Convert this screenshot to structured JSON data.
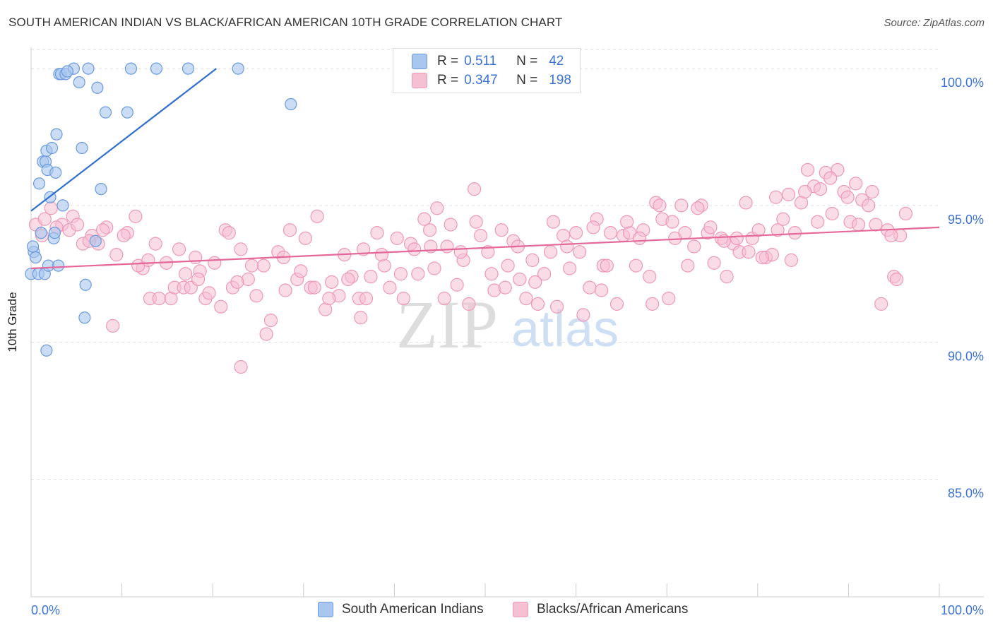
{
  "title": "SOUTH AMERICAN INDIAN VS BLACK/AFRICAN AMERICAN 10TH GRADE CORRELATION CHART",
  "source": "Source: ZipAtlas.com",
  "watermark": {
    "zip": "ZIP",
    "atlas": "atlas"
  },
  "legend": {
    "r_label": "R =",
    "n_label": "N =",
    "rows": [
      {
        "r": "0.511",
        "n": "42"
      },
      {
        "r": "0.347",
        "n": "198"
      }
    ]
  },
  "bottom_legend": [
    "South American Indians",
    "Blacks/African Americans"
  ],
  "colors": {
    "blue_fill": "#a9c6ef",
    "blue_stroke": "#6a9bde",
    "blue_line": "#2f6fd0",
    "pink_fill": "#f6c0d3",
    "pink_stroke": "#ee97b6",
    "pink_line": "#e5689a",
    "tick_label": "#3b72d6",
    "grid": "#dddddd"
  },
  "chart_data": {
    "type": "scatter",
    "title": "SOUTH AMERICAN INDIAN VS BLACK/AFRICAN AMERICAN 10TH GRADE CORRELATION CHART",
    "xlabel": "",
    "ylabel": "10th Grade",
    "xlim": [
      0,
      100
    ],
    "ylim": [
      80.7,
      100.7
    ],
    "x_tick_labels": [
      "0.0%",
      "100.0%"
    ],
    "y_ticks": [
      85.0,
      90.0,
      95.0,
      100.0
    ],
    "y_tick_labels": [
      "85.0%",
      "90.0%",
      "95.0%",
      "100.0%"
    ],
    "grid": true,
    "legend_position": "top-center",
    "series": [
      {
        "name": "South American Indians",
        "r": 0.511,
        "n": 42,
        "trend": {
          "x": [
            0,
            20.4
          ],
          "y": [
            94.8,
            100.0
          ]
        },
        "points": [
          [
            0.0,
            92.5
          ],
          [
            0.3,
            93.3
          ],
          [
            0.5,
            93.1
          ],
          [
            0.8,
            92.5
          ],
          [
            0.9,
            95.8
          ],
          [
            1.1,
            94.0
          ],
          [
            1.3,
            96.6
          ],
          [
            1.5,
            92.5
          ],
          [
            1.6,
            96.6
          ],
          [
            1.7,
            97.0
          ],
          [
            1.8,
            96.3
          ],
          [
            1.9,
            92.8
          ],
          [
            2.1,
            95.3
          ],
          [
            2.3,
            97.1
          ],
          [
            2.5,
            93.8
          ],
          [
            2.6,
            94.0
          ],
          [
            2.7,
            96.2
          ],
          [
            2.8,
            97.6
          ],
          [
            3.0,
            92.8
          ],
          [
            3.1,
            99.8
          ],
          [
            3.3,
            99.8
          ],
          [
            3.5,
            95.0
          ],
          [
            3.8,
            99.8
          ],
          [
            4.7,
            100.0
          ],
          [
            5.3,
            99.5
          ],
          [
            5.6,
            97.1
          ],
          [
            6.0,
            92.1
          ],
          [
            6.3,
            100.0
          ],
          [
            7.3,
            99.3
          ],
          [
            7.1,
            93.7
          ],
          [
            7.7,
            95.6
          ],
          [
            8.2,
            98.4
          ],
          [
            10.6,
            98.4
          ],
          [
            11.0,
            100.0
          ],
          [
            13.8,
            100.0
          ],
          [
            17.3,
            100.0
          ],
          [
            22.8,
            100.0
          ],
          [
            28.6,
            98.7
          ],
          [
            5.9,
            90.9
          ],
          [
            1.7,
            89.7
          ],
          [
            0.2,
            93.5
          ],
          [
            4.0,
            99.9
          ]
        ]
      },
      {
        "name": "Blacks/African Americans",
        "r": 0.347,
        "n": 198,
        "trend": {
          "x": [
            0,
            100
          ],
          "y": [
            92.7,
            94.2
          ]
        },
        "points": [
          [
            0.5,
            94.3
          ],
          [
            1.5,
            94.5
          ],
          [
            2.2,
            94.9
          ],
          [
            3.4,
            94.3
          ],
          [
            4.6,
            94.6
          ],
          [
            5.7,
            93.6
          ],
          [
            6.7,
            93.9
          ],
          [
            7.4,
            93.6
          ],
          [
            8.3,
            94.2
          ],
          [
            9.4,
            93.2
          ],
          [
            10.6,
            94.0
          ],
          [
            11.5,
            94.6
          ],
          [
            12.3,
            92.7
          ],
          [
            13.1,
            91.6
          ],
          [
            13.7,
            93.6
          ],
          [
            14.9,
            92.9
          ],
          [
            15.4,
            91.6
          ],
          [
            16.3,
            93.4
          ],
          [
            17.0,
            92.5
          ],
          [
            18.1,
            93.1
          ],
          [
            18.6,
            92.6
          ],
          [
            19.2,
            91.6
          ],
          [
            20.2,
            92.9
          ],
          [
            20.9,
            91.3
          ],
          [
            21.4,
            94.1
          ],
          [
            22.2,
            92.0
          ],
          [
            23.1,
            93.4
          ],
          [
            23.9,
            92.3
          ],
          [
            24.8,
            91.7
          ],
          [
            25.6,
            92.8
          ],
          [
            26.4,
            90.8
          ],
          [
            27.2,
            93.3
          ],
          [
            28.0,
            91.9
          ],
          [
            28.5,
            94.1
          ],
          [
            29.3,
            92.3
          ],
          [
            30.2,
            93.8
          ],
          [
            30.8,
            92.0
          ],
          [
            31.5,
            94.6
          ],
          [
            32.4,
            91.2
          ],
          [
            33.1,
            92.2
          ],
          [
            33.9,
            91.7
          ],
          [
            34.5,
            93.2
          ],
          [
            35.3,
            92.4
          ],
          [
            36.1,
            91.6
          ],
          [
            36.6,
            93.4
          ],
          [
            37.4,
            92.4
          ],
          [
            38.1,
            94.0
          ],
          [
            38.9,
            92.8
          ],
          [
            39.5,
            92.0
          ],
          [
            40.3,
            93.8
          ],
          [
            41.0,
            91.6
          ],
          [
            41.8,
            93.6
          ],
          [
            42.6,
            92.5
          ],
          [
            43.3,
            94.5
          ],
          [
            44.0,
            93.5
          ],
          [
            44.7,
            94.9
          ],
          [
            45.5,
            91.6
          ],
          [
            46.2,
            94.3
          ],
          [
            46.9,
            92.1
          ],
          [
            47.6,
            93.0
          ],
          [
            48.2,
            91.4
          ],
          [
            48.8,
            95.6
          ],
          [
            49.5,
            93.9
          ],
          [
            50.3,
            93.3
          ],
          [
            51.0,
            91.9
          ],
          [
            51.8,
            94.1
          ],
          [
            52.5,
            92.8
          ],
          [
            53.1,
            93.7
          ],
          [
            53.8,
            92.3
          ],
          [
            54.5,
            91.6
          ],
          [
            55.2,
            93.0
          ],
          [
            55.8,
            91.4
          ],
          [
            56.5,
            92.5
          ],
          [
            57.2,
            93.3
          ],
          [
            57.9,
            91.3
          ],
          [
            58.6,
            93.9
          ],
          [
            59.3,
            92.7
          ],
          [
            60.0,
            94.0
          ],
          [
            60.8,
            91.0
          ],
          [
            61.5,
            92.0
          ],
          [
            62.3,
            94.5
          ],
          [
            63.0,
            92.8
          ],
          [
            63.8,
            94.0
          ],
          [
            64.5,
            91.4
          ],
          [
            65.2,
            93.9
          ],
          [
            65.9,
            94.0
          ],
          [
            66.6,
            92.8
          ],
          [
            67.4,
            94.1
          ],
          [
            68.1,
            92.4
          ],
          [
            68.8,
            95.1
          ],
          [
            69.5,
            94.5
          ],
          [
            70.2,
            91.6
          ],
          [
            70.9,
            93.8
          ],
          [
            71.6,
            95.0
          ],
          [
            72.3,
            92.8
          ],
          [
            73.0,
            93.5
          ],
          [
            73.8,
            95.0
          ],
          [
            74.5,
            94.0
          ],
          [
            75.2,
            92.9
          ],
          [
            76.0,
            93.8
          ],
          [
            76.6,
            92.4
          ],
          [
            77.3,
            93.6
          ],
          [
            78.0,
            93.3
          ],
          [
            78.7,
            95.1
          ],
          [
            79.4,
            93.8
          ],
          [
            80.1,
            94.1
          ],
          [
            80.9,
            93.1
          ],
          [
            81.6,
            93.2
          ],
          [
            82.2,
            94.1
          ],
          [
            82.8,
            94.5
          ],
          [
            83.4,
            95.4
          ],
          [
            84.1,
            94.0
          ],
          [
            84.8,
            95.1
          ],
          [
            85.5,
            96.3
          ],
          [
            86.2,
            95.7
          ],
          [
            86.9,
            95.6
          ],
          [
            87.5,
            96.2
          ],
          [
            88.2,
            94.7
          ],
          [
            88.8,
            96.3
          ],
          [
            89.5,
            95.5
          ],
          [
            90.2,
            94.4
          ],
          [
            90.8,
            95.8
          ],
          [
            91.5,
            95.2
          ],
          [
            92.2,
            95.0
          ],
          [
            93.0,
            94.3
          ],
          [
            93.6,
            91.4
          ],
          [
            94.3,
            94.1
          ],
          [
            95.0,
            92.4
          ],
          [
            95.7,
            93.9
          ],
          [
            96.3,
            94.7
          ],
          [
            1.2,
            93.9
          ],
          [
            2.8,
            94.2
          ],
          [
            4.2,
            94.1
          ],
          [
            5.1,
            94.3
          ],
          [
            6.4,
            93.7
          ],
          [
            7.9,
            94.1
          ],
          [
            9.0,
            90.6
          ],
          [
            10.2,
            93.9
          ],
          [
            11.8,
            92.8
          ],
          [
            12.9,
            93.0
          ],
          [
            14.1,
            91.6
          ],
          [
            15.8,
            92.0
          ],
          [
            16.8,
            92.0
          ],
          [
            17.6,
            92.0
          ],
          [
            19.6,
            91.8
          ],
          [
            21.8,
            94.0
          ],
          [
            22.7,
            92.2
          ],
          [
            24.3,
            92.8
          ],
          [
            25.9,
            90.3
          ],
          [
            27.8,
            93.1
          ],
          [
            29.7,
            92.6
          ],
          [
            31.2,
            92.0
          ],
          [
            32.8,
            91.6
          ],
          [
            34.9,
            92.3
          ],
          [
            36.9,
            91.6
          ],
          [
            38.6,
            93.2
          ],
          [
            40.7,
            92.5
          ],
          [
            42.2,
            93.4
          ],
          [
            43.9,
            94.1
          ],
          [
            45.8,
            93.5
          ],
          [
            47.3,
            93.3
          ],
          [
            49.0,
            94.4
          ],
          [
            50.7,
            92.5
          ],
          [
            52.2,
            92.0
          ],
          [
            53.6,
            93.5
          ],
          [
            55.5,
            92.2
          ],
          [
            57.5,
            94.4
          ],
          [
            59.0,
            93.5
          ],
          [
            60.4,
            93.3
          ],
          [
            61.9,
            94.2
          ],
          [
            63.4,
            92.8
          ],
          [
            65.6,
            94.4
          ],
          [
            67.0,
            93.8
          ],
          [
            69.2,
            95.0
          ],
          [
            70.6,
            94.4
          ],
          [
            72.0,
            94.0
          ],
          [
            73.4,
            94.9
          ],
          [
            74.8,
            94.2
          ],
          [
            76.3,
            93.7
          ],
          [
            77.7,
            93.8
          ],
          [
            79.0,
            93.3
          ],
          [
            80.5,
            93.1
          ],
          [
            82.0,
            95.3
          ],
          [
            83.7,
            93.0
          ],
          [
            85.2,
            95.5
          ],
          [
            86.6,
            94.4
          ],
          [
            88.0,
            96.0
          ],
          [
            89.9,
            95.3
          ],
          [
            91.1,
            94.3
          ],
          [
            92.6,
            95.5
          ],
          [
            94.7,
            93.9
          ],
          [
            95.3,
            92.3
          ],
          [
            23.1,
            89.1
          ],
          [
            18.4,
            92.3
          ],
          [
            44.4,
            92.7
          ],
          [
            36.3,
            90.9
          ],
          [
            62.8,
            91.9
          ],
          [
            68.4,
            91.4
          ]
        ]
      }
    ]
  }
}
